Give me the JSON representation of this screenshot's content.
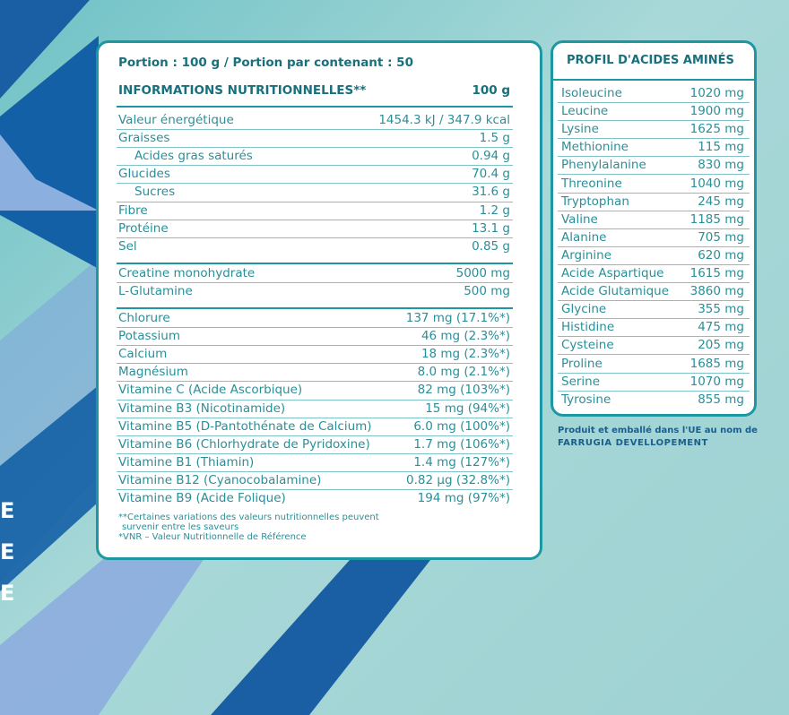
{
  "nutrition": {
    "portion": "Portion : 100 g / Portion par contenant : 50",
    "header": {
      "label": "INFORMATIONS NUTRITIONNELLES**",
      "value": "100 g"
    },
    "groups": [
      [
        [
          "Valeur énergétique",
          "1454.3 kJ / 347.9 kcal"
        ],
        [
          "Graisses",
          "1.5 g"
        ],
        [
          "Acides gras saturés",
          "0.94 g"
        ],
        [
          "Glucides",
          "70.4 g"
        ],
        [
          "Sucres",
          "31.6 g"
        ],
        [
          "Fibre",
          "1.2 g"
        ],
        [
          "Protéine",
          "13.1 g"
        ],
        [
          "Sel",
          "0.85 g"
        ]
      ],
      [
        [
          "Creatine monohydrate",
          "5000 mg"
        ],
        [
          "L-Glutamine",
          "500 mg"
        ]
      ],
      [
        [
          "Chlorure",
          "137 mg (17.1%*)"
        ],
        [
          "Potassium",
          "46 mg (2.3%*)"
        ],
        [
          "Calcium",
          "18 mg (2.3%*)"
        ],
        [
          "Magnésium",
          "8.0 mg (2.1%*)"
        ],
        [
          "Vitamine C (Acide Ascorbique)",
          "82 mg (103%*)"
        ],
        [
          "Vitamine B3 (Nicotinamide)",
          "15 mg (94%*)"
        ],
        [
          "Vitamine B5 (D-Pantothénate de Calcium)",
          "6.0 mg (100%*)"
        ],
        [
          "Vitamine B6 (Chlorhydrate de Pyridoxine)",
          "1.7 mg (106%*)"
        ],
        [
          "Vitamine B1 (Thiamin)",
          "1.4 mg (127%*)"
        ],
        [
          "Vitamine B12 (Cyanocobalamine)",
          "0.82 µg (32.8%*)"
        ],
        [
          "Vitamine B9 (Acide Folique)",
          "194 mg (97%*)"
        ]
      ]
    ],
    "footnotes": [
      "**Certaines variations des valeurs nutritionnelles peuvent",
      "survenir entre les saveurs",
      "*VNR – Valeur Nutritionnelle de Référence"
    ]
  },
  "amino": {
    "title": "PROFIL D'ACIDES AMINÉS",
    "rows": [
      [
        "Isoleucine",
        "1020 mg"
      ],
      [
        "Leucine",
        "1900 mg"
      ],
      [
        "Lysine",
        "1625 mg"
      ],
      [
        "Methionine",
        "115 mg"
      ],
      [
        "Phenylalanine",
        "830 mg"
      ],
      [
        "Threonine",
        "1040 mg"
      ],
      [
        "Tryptophan",
        "245 mg"
      ],
      [
        "Valine",
        "1185 mg"
      ],
      [
        "Alanine",
        "705 mg"
      ],
      [
        "Arginine",
        "620 mg"
      ],
      [
        "Acide Aspartique",
        "1615 mg"
      ],
      [
        "Acide Glutamique",
        "3860 mg"
      ],
      [
        "Glycine",
        "355 mg"
      ],
      [
        "Histidine",
        "475 mg"
      ],
      [
        "Cysteine",
        "205 mg"
      ],
      [
        "Proline",
        "1685 mg"
      ],
      [
        "Serine",
        "1070 mg"
      ],
      [
        "Tyrosine",
        "855 mg"
      ]
    ]
  },
  "producer": {
    "line1": "Produit et emballé dans l'UE au nom de",
    "line2": "FARRUGIA DEVELLOPEMENT"
  },
  "side_letters": [
    "E",
    "E",
    "E"
  ]
}
